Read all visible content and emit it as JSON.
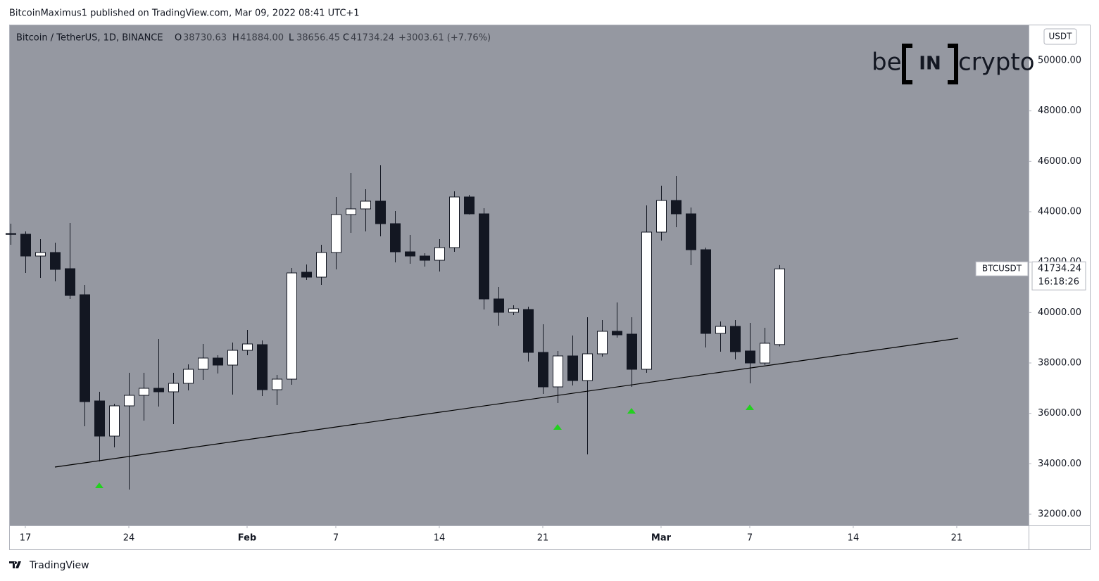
{
  "published": "BitcoinMaximus1 published on TradingView.com, Mar 09, 2022 08:41 UTC+1",
  "footer": "TradingView",
  "logo": {
    "left": "be",
    "middle": "IN",
    "right": "crypto"
  },
  "chart_data": {
    "type": "candlestick",
    "header": {
      "symbol": "Bitcoin / TetherUS, 1D, BINANCE",
      "labels": [
        "O",
        "H",
        "L",
        "C"
      ],
      "values": [
        "38730.63",
        "41884.00",
        "38656.45",
        "41734.24"
      ],
      "change": "+3003.61 (+7.76%)"
    },
    "axis_unit": "USDT",
    "ticker": "BTCUSDT",
    "countdown": "16:18:26",
    "up_color": "#ffffff",
    "down_color": "#131722",
    "background": "#9598a1",
    "x": [
      -1,
      0,
      1,
      2,
      3,
      4,
      5,
      6,
      7,
      8,
      9,
      10,
      11,
      12,
      13,
      14,
      15,
      16,
      17,
      18,
      19,
      20,
      21,
      22,
      23,
      24,
      25,
      26,
      27,
      28,
      29,
      30,
      31,
      32,
      33,
      34,
      35,
      36,
      37,
      38,
      39,
      40,
      41,
      42,
      43,
      44,
      45,
      46,
      47,
      48,
      49,
      50,
      51
    ],
    "open": [
      43135,
      43107,
      42242,
      42382,
      41740,
      40707,
      36493,
      35098,
      36298,
      36716,
      36995,
      36856,
      37191,
      37749,
      38195,
      37916,
      38502,
      38726,
      36940,
      37358,
      41600,
      41405,
      42382,
      43888,
      44112,
      44419,
      43526,
      42409,
      42242,
      42074,
      42577,
      44586,
      43916,
      40540,
      40009,
      40121,
      38419,
      37051,
      38279,
      37302,
      38363,
      39256,
      39144,
      37749,
      43191,
      44447,
      43916,
      42493,
      39172,
      39451,
      38475,
      37999,
      38730.63
    ],
    "high": [
      43526,
      43219,
      42912,
      42772,
      43554,
      41098,
      36856,
      36381,
      37609,
      37609,
      38949,
      37609,
      37944,
      38754,
      38307,
      38809,
      39312,
      38893,
      37526,
      41768,
      41907,
      42688,
      44586,
      45535,
      44893,
      45842,
      44028,
      43079,
      42353,
      42912,
      44809,
      44670,
      44140,
      41014,
      40288,
      40233,
      39535,
      38474,
      39088,
      39814,
      39702,
      40400,
      39814,
      44251,
      45033,
      45423,
      44167,
      42577,
      39646,
      39702,
      39591,
      39395,
      41884
    ],
    "low": [
      42688,
      41572,
      41377,
      41237,
      40540,
      35488,
      34093,
      34651,
      32977,
      35712,
      36270,
      35572,
      36911,
      37330,
      37581,
      36744,
      38307,
      36688,
      36326,
      37135,
      41293,
      41098,
      41712,
      43163,
      43219,
      43023,
      41991,
      41935,
      41823,
      41628,
      42409,
      43888,
      40121,
      39479,
      39898,
      38056,
      36772,
      36409,
      37107,
      34372,
      38251,
      39005,
      37051,
      37609,
      42856,
      43386,
      41879,
      38614,
      38447,
      38140,
      37191,
      37916,
      38656.45
    ],
    "close": [
      43100,
      42242,
      42382,
      41712,
      40679,
      36465,
      35098,
      36298,
      36716,
      36995,
      36856,
      37191,
      37749,
      38195,
      37916,
      38502,
      38754,
      36940,
      37358,
      41572,
      41405,
      42382,
      43888,
      44112,
      44419,
      43526,
      42409,
      42242,
      42074,
      42577,
      44586,
      43916,
      40540,
      40009,
      40149,
      38419,
      37051,
      38279,
      37302,
      38363,
      39256,
      39116,
      37749,
      43191,
      44447,
      43916,
      42493,
      39172,
      39451,
      38447,
      37999,
      38782,
      41734.24
    ],
    "trendline": {
      "x": [
        2,
        63.1
      ],
      "y": [
        33870,
        38977
      ],
      "color": "#000000"
    },
    "signal_markers": {
      "x": [
        5,
        36,
        41,
        49
      ],
      "color": "#22d11e"
    },
    "xlim": [
      -1.095,
      67.86
    ],
    "xticks": [
      {
        "value": 0,
        "label": "17"
      },
      {
        "value": 7,
        "label": "24"
      },
      {
        "value": 15,
        "label": "Feb"
      },
      {
        "value": 21,
        "label": "7"
      },
      {
        "value": 28,
        "label": "14"
      },
      {
        "value": 35,
        "label": "21"
      },
      {
        "value": 43,
        "label": "Mar"
      },
      {
        "value": 49,
        "label": "7"
      },
      {
        "value": 56,
        "label": "14"
      },
      {
        "value": 63,
        "label": "21"
      }
    ],
    "ylim": [
      31554,
      51423
    ],
    "yticks": [
      {
        "value": 32000,
        "label": "32000.00"
      },
      {
        "value": 34000,
        "label": "34000.00"
      },
      {
        "value": 36000,
        "label": "36000.00"
      },
      {
        "value": 38000,
        "label": "38000.00"
      },
      {
        "value": 40000,
        "label": "40000.00"
      },
      {
        "value": 42000,
        "label": "42000.00"
      },
      {
        "value": 44000,
        "label": "44000.00"
      },
      {
        "value": 46000,
        "label": "46000.00"
      },
      {
        "value": 48000,
        "label": "48000.00"
      },
      {
        "value": 50000,
        "label": "50000.00"
      }
    ]
  }
}
